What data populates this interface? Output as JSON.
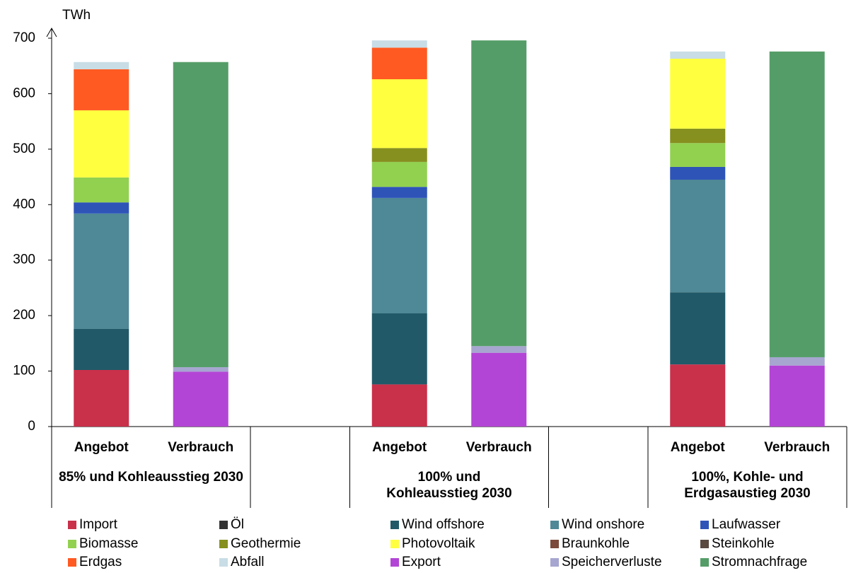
{
  "chart_data": {
    "type": "stacked_bar",
    "y_label": "TWh",
    "categories": [
      "Angebot",
      "Verbrauch",
      null,
      "Angebot",
      "Verbrauch",
      null,
      "Angebot",
      "Verbrauch"
    ],
    "groups": [
      "85% und Kohleausstieg 2030",
      "100% und Kohleausstieg 2030",
      "100%, Kohle- und Erdgasaustieg 2030"
    ],
    "ylim": [
      0,
      700
    ],
    "yticks": [
      0,
      100,
      200,
      300,
      400,
      500,
      600,
      700
    ],
    "grid": false,
    "series": [
      {
        "name": "Import",
        "color": "#c9304a",
        "values": [
          102,
          null,
          null,
          76,
          null,
          null,
          112,
          null
        ]
      },
      {
        "name": "Öl",
        "color": "#333333",
        "values": [
          0,
          null,
          null,
          0,
          null,
          null,
          0,
          null
        ]
      },
      {
        "name": "Wind offshore",
        "color": "#215968",
        "values": [
          74,
          null,
          null,
          128,
          null,
          null,
          130,
          null
        ]
      },
      {
        "name": "Wind onshore",
        "color": "#4f8896",
        "values": [
          208,
          null,
          null,
          208,
          null,
          null,
          203,
          null
        ]
      },
      {
        "name": "Laufwasser",
        "color": "#2e54b8",
        "values": [
          20,
          null,
          null,
          20,
          null,
          null,
          23,
          null
        ]
      },
      {
        "name": "Biomasse",
        "color": "#92d050",
        "values": [
          45,
          null,
          null,
          45,
          null,
          null,
          43,
          null
        ]
      },
      {
        "name": "Geothermie",
        "color": "#86901e",
        "values": [
          0,
          null,
          null,
          25,
          null,
          null,
          26,
          null
        ]
      },
      {
        "name": "Photovoltaik",
        "color": "#ffff40",
        "values": [
          121,
          null,
          null,
          124,
          null,
          null,
          126,
          null
        ]
      },
      {
        "name": "Braunkohle",
        "color": "#7b4a3a",
        "values": [
          0,
          null,
          null,
          0,
          null,
          null,
          0,
          null
        ]
      },
      {
        "name": "Steinkohle",
        "color": "#5a4a40",
        "values": [
          0,
          null,
          null,
          0,
          null,
          null,
          0,
          null
        ]
      },
      {
        "name": "Erdgas",
        "color": "#ff5a22",
        "values": [
          74,
          null,
          null,
          57,
          null,
          null,
          0,
          null
        ]
      },
      {
        "name": "Abfall",
        "color": "#c8dde6",
        "values": [
          13,
          null,
          null,
          13,
          null,
          null,
          13,
          null
        ]
      },
      {
        "name": "Export",
        "color": "#b345d6",
        "values": [
          null,
          99,
          null,
          null,
          133,
          null,
          null,
          110
        ]
      },
      {
        "name": "Speicherverluste",
        "color": "#a6a6d0",
        "values": [
          null,
          8,
          null,
          null,
          12,
          null,
          null,
          15
        ]
      },
      {
        "name": "Stromnachfrage",
        "color": "#559d68",
        "values": [
          null,
          550,
          null,
          null,
          551,
          null,
          null,
          551
        ]
      }
    ]
  }
}
